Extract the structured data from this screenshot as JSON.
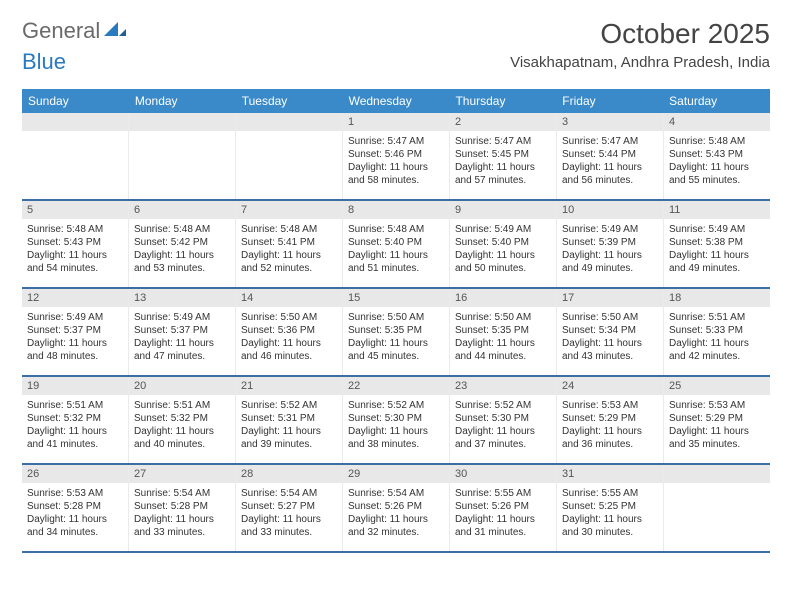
{
  "logo": {
    "text1": "General",
    "text2": "Blue"
  },
  "title": "October 2025",
  "location": "Visakhapatnam, Andhra Pradesh, India",
  "colors": {
    "header_bg": "#3a89c9",
    "header_text": "#ffffff",
    "border": "#3a6fa5",
    "daynum_bg": "#e8e8e8",
    "text": "#333333",
    "logo_gray": "#6a6a6a",
    "logo_blue": "#2a7ac0"
  },
  "daysOfWeek": [
    "Sunday",
    "Monday",
    "Tuesday",
    "Wednesday",
    "Thursday",
    "Friday",
    "Saturday"
  ],
  "weeks": [
    [
      {
        "n": "",
        "sr": "",
        "ss": "",
        "dl": ""
      },
      {
        "n": "",
        "sr": "",
        "ss": "",
        "dl": ""
      },
      {
        "n": "",
        "sr": "",
        "ss": "",
        "dl": ""
      },
      {
        "n": "1",
        "sr": "Sunrise: 5:47 AM",
        "ss": "Sunset: 5:46 PM",
        "dl": "Daylight: 11 hours and 58 minutes."
      },
      {
        "n": "2",
        "sr": "Sunrise: 5:47 AM",
        "ss": "Sunset: 5:45 PM",
        "dl": "Daylight: 11 hours and 57 minutes."
      },
      {
        "n": "3",
        "sr": "Sunrise: 5:47 AM",
        "ss": "Sunset: 5:44 PM",
        "dl": "Daylight: 11 hours and 56 minutes."
      },
      {
        "n": "4",
        "sr": "Sunrise: 5:48 AM",
        "ss": "Sunset: 5:43 PM",
        "dl": "Daylight: 11 hours and 55 minutes."
      }
    ],
    [
      {
        "n": "5",
        "sr": "Sunrise: 5:48 AM",
        "ss": "Sunset: 5:43 PM",
        "dl": "Daylight: 11 hours and 54 minutes."
      },
      {
        "n": "6",
        "sr": "Sunrise: 5:48 AM",
        "ss": "Sunset: 5:42 PM",
        "dl": "Daylight: 11 hours and 53 minutes."
      },
      {
        "n": "7",
        "sr": "Sunrise: 5:48 AM",
        "ss": "Sunset: 5:41 PM",
        "dl": "Daylight: 11 hours and 52 minutes."
      },
      {
        "n": "8",
        "sr": "Sunrise: 5:48 AM",
        "ss": "Sunset: 5:40 PM",
        "dl": "Daylight: 11 hours and 51 minutes."
      },
      {
        "n": "9",
        "sr": "Sunrise: 5:49 AM",
        "ss": "Sunset: 5:40 PM",
        "dl": "Daylight: 11 hours and 50 minutes."
      },
      {
        "n": "10",
        "sr": "Sunrise: 5:49 AM",
        "ss": "Sunset: 5:39 PM",
        "dl": "Daylight: 11 hours and 49 minutes."
      },
      {
        "n": "11",
        "sr": "Sunrise: 5:49 AM",
        "ss": "Sunset: 5:38 PM",
        "dl": "Daylight: 11 hours and 49 minutes."
      }
    ],
    [
      {
        "n": "12",
        "sr": "Sunrise: 5:49 AM",
        "ss": "Sunset: 5:37 PM",
        "dl": "Daylight: 11 hours and 48 minutes."
      },
      {
        "n": "13",
        "sr": "Sunrise: 5:49 AM",
        "ss": "Sunset: 5:37 PM",
        "dl": "Daylight: 11 hours and 47 minutes."
      },
      {
        "n": "14",
        "sr": "Sunrise: 5:50 AM",
        "ss": "Sunset: 5:36 PM",
        "dl": "Daylight: 11 hours and 46 minutes."
      },
      {
        "n": "15",
        "sr": "Sunrise: 5:50 AM",
        "ss": "Sunset: 5:35 PM",
        "dl": "Daylight: 11 hours and 45 minutes."
      },
      {
        "n": "16",
        "sr": "Sunrise: 5:50 AM",
        "ss": "Sunset: 5:35 PM",
        "dl": "Daylight: 11 hours and 44 minutes."
      },
      {
        "n": "17",
        "sr": "Sunrise: 5:50 AM",
        "ss": "Sunset: 5:34 PM",
        "dl": "Daylight: 11 hours and 43 minutes."
      },
      {
        "n": "18",
        "sr": "Sunrise: 5:51 AM",
        "ss": "Sunset: 5:33 PM",
        "dl": "Daylight: 11 hours and 42 minutes."
      }
    ],
    [
      {
        "n": "19",
        "sr": "Sunrise: 5:51 AM",
        "ss": "Sunset: 5:32 PM",
        "dl": "Daylight: 11 hours and 41 minutes."
      },
      {
        "n": "20",
        "sr": "Sunrise: 5:51 AM",
        "ss": "Sunset: 5:32 PM",
        "dl": "Daylight: 11 hours and 40 minutes."
      },
      {
        "n": "21",
        "sr": "Sunrise: 5:52 AM",
        "ss": "Sunset: 5:31 PM",
        "dl": "Daylight: 11 hours and 39 minutes."
      },
      {
        "n": "22",
        "sr": "Sunrise: 5:52 AM",
        "ss": "Sunset: 5:30 PM",
        "dl": "Daylight: 11 hours and 38 minutes."
      },
      {
        "n": "23",
        "sr": "Sunrise: 5:52 AM",
        "ss": "Sunset: 5:30 PM",
        "dl": "Daylight: 11 hours and 37 minutes."
      },
      {
        "n": "24",
        "sr": "Sunrise: 5:53 AM",
        "ss": "Sunset: 5:29 PM",
        "dl": "Daylight: 11 hours and 36 minutes."
      },
      {
        "n": "25",
        "sr": "Sunrise: 5:53 AM",
        "ss": "Sunset: 5:29 PM",
        "dl": "Daylight: 11 hours and 35 minutes."
      }
    ],
    [
      {
        "n": "26",
        "sr": "Sunrise: 5:53 AM",
        "ss": "Sunset: 5:28 PM",
        "dl": "Daylight: 11 hours and 34 minutes."
      },
      {
        "n": "27",
        "sr": "Sunrise: 5:54 AM",
        "ss": "Sunset: 5:28 PM",
        "dl": "Daylight: 11 hours and 33 minutes."
      },
      {
        "n": "28",
        "sr": "Sunrise: 5:54 AM",
        "ss": "Sunset: 5:27 PM",
        "dl": "Daylight: 11 hours and 33 minutes."
      },
      {
        "n": "29",
        "sr": "Sunrise: 5:54 AM",
        "ss": "Sunset: 5:26 PM",
        "dl": "Daylight: 11 hours and 32 minutes."
      },
      {
        "n": "30",
        "sr": "Sunrise: 5:55 AM",
        "ss": "Sunset: 5:26 PM",
        "dl": "Daylight: 11 hours and 31 minutes."
      },
      {
        "n": "31",
        "sr": "Sunrise: 5:55 AM",
        "ss": "Sunset: 5:25 PM",
        "dl": "Daylight: 11 hours and 30 minutes."
      },
      {
        "n": "",
        "sr": "",
        "ss": "",
        "dl": ""
      }
    ]
  ]
}
